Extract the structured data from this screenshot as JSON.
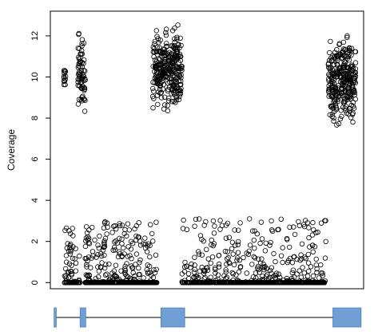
{
  "chart_data": {
    "type": "scatter",
    "title": "",
    "xlabel": "",
    "ylabel": "Coverage",
    "ylim": [
      -0.3,
      13.2
    ],
    "xlim": [
      0,
      100
    ],
    "yticks": [
      0,
      2,
      4,
      6,
      8,
      10,
      12
    ],
    "grid": false,
    "legend": "none",
    "marker": "open-circle",
    "point_color": "#000000",
    "clusters": [
      {
        "region": "low",
        "x_range": [
          4.5,
          9.5
        ],
        "y_range": [
          0,
          2.7
        ],
        "count": 80
      },
      {
        "region": "low",
        "x_range": [
          11,
          34
        ],
        "y_range": [
          0,
          3.0
        ],
        "count": 420
      },
      {
        "region": "low",
        "x_range": [
          42,
          88
        ],
        "y_range": [
          0,
          3.1
        ],
        "count": 620
      },
      {
        "region": "high",
        "x_range": [
          4.3,
          5.0
        ],
        "y_range": [
          8.8,
          11.0
        ],
        "count": 14
      },
      {
        "region": "high",
        "x_range": [
          8.7,
          11.2
        ],
        "y_range": [
          7.6,
          12.7
        ],
        "count": 70
      },
      {
        "region": "high",
        "x_range": [
          32.7,
          42.0
        ],
        "y_range": [
          7.9,
          12.9
        ],
        "count": 300
      },
      {
        "region": "high",
        "x_range": [
          88.7,
          97.5
        ],
        "y_range": [
          7.1,
          12.6
        ],
        "count": 300
      }
    ],
    "exon_track": {
      "color": "#6f9fd4",
      "line_x": [
        1.2,
        99.2
      ],
      "exons": [
        [
          1.2,
          1.9
        ],
        [
          9.5,
          11.3
        ],
        [
          35.3,
          42.9
        ],
        [
          90.2,
          99.2
        ]
      ]
    }
  }
}
